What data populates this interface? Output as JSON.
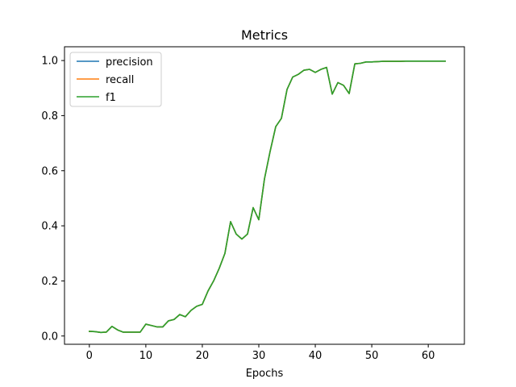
{
  "chart_data": {
    "type": "line",
    "title": "Metrics",
    "xlabel": "Epochs",
    "ylabel": "",
    "xlim": [
      -4.4,
      66.4
    ],
    "ylim": [
      -0.03,
      1.05
    ],
    "xticks": [
      0,
      10,
      20,
      30,
      40,
      50,
      60
    ],
    "yticks": [
      0.0,
      0.2,
      0.4,
      0.6,
      0.8,
      1.0
    ],
    "xtick_labels": [
      "0",
      "10",
      "20",
      "30",
      "40",
      "50",
      "60"
    ],
    "ytick_labels": [
      "0.0",
      "0.2",
      "0.4",
      "0.6",
      "0.8",
      "1.0"
    ],
    "grid": false,
    "legend_position": "top-left",
    "x": [
      0,
      1,
      2,
      3,
      4,
      5,
      6,
      7,
      8,
      9,
      10,
      11,
      12,
      13,
      14,
      15,
      16,
      17,
      18,
      19,
      20,
      21,
      22,
      23,
      24,
      25,
      26,
      27,
      28,
      29,
      30,
      31,
      32,
      33,
      34,
      35,
      36,
      37,
      38,
      39,
      40,
      41,
      42,
      43,
      44,
      45,
      46,
      47,
      48,
      49,
      50,
      51,
      52,
      53,
      54,
      55,
      56,
      57,
      58,
      59,
      60,
      61,
      62,
      63
    ],
    "series": [
      {
        "name": "precision",
        "color": "#1f77b4",
        "values": [
          0.017,
          0.016,
          0.013,
          0.014,
          0.035,
          0.022,
          0.014,
          0.014,
          0.014,
          0.014,
          0.043,
          0.038,
          0.033,
          0.033,
          0.055,
          0.06,
          0.078,
          0.07,
          0.093,
          0.108,
          0.115,
          0.163,
          0.2,
          0.246,
          0.3,
          0.415,
          0.37,
          0.352,
          0.37,
          0.466,
          0.422,
          0.57,
          0.67,
          0.76,
          0.79,
          0.895,
          0.94,
          0.95,
          0.965,
          0.968,
          0.957,
          0.968,
          0.975,
          0.878,
          0.92,
          0.91,
          0.88,
          0.988,
          0.99,
          0.995,
          0.995,
          0.996,
          0.997,
          0.997,
          0.997,
          0.997,
          0.998,
          0.998,
          0.998,
          0.998,
          0.998,
          0.998,
          0.998,
          0.998
        ]
      },
      {
        "name": "recall",
        "color": "#ff7f0e",
        "values": [
          0.017,
          0.016,
          0.013,
          0.014,
          0.035,
          0.022,
          0.014,
          0.014,
          0.014,
          0.014,
          0.043,
          0.038,
          0.033,
          0.033,
          0.055,
          0.06,
          0.078,
          0.07,
          0.093,
          0.108,
          0.115,
          0.163,
          0.2,
          0.246,
          0.3,
          0.415,
          0.37,
          0.352,
          0.37,
          0.466,
          0.422,
          0.57,
          0.67,
          0.76,
          0.79,
          0.895,
          0.94,
          0.95,
          0.965,
          0.968,
          0.957,
          0.968,
          0.975,
          0.878,
          0.92,
          0.91,
          0.88,
          0.988,
          0.99,
          0.995,
          0.995,
          0.996,
          0.997,
          0.997,
          0.997,
          0.997,
          0.998,
          0.998,
          0.998,
          0.998,
          0.998,
          0.998,
          0.998,
          0.998
        ]
      },
      {
        "name": "f1",
        "color": "#2ca02c",
        "values": [
          0.017,
          0.016,
          0.013,
          0.014,
          0.035,
          0.022,
          0.014,
          0.014,
          0.014,
          0.014,
          0.043,
          0.038,
          0.033,
          0.033,
          0.055,
          0.06,
          0.078,
          0.07,
          0.093,
          0.108,
          0.115,
          0.163,
          0.2,
          0.246,
          0.3,
          0.415,
          0.37,
          0.352,
          0.37,
          0.466,
          0.422,
          0.57,
          0.67,
          0.76,
          0.79,
          0.895,
          0.94,
          0.95,
          0.965,
          0.968,
          0.957,
          0.968,
          0.975,
          0.878,
          0.92,
          0.91,
          0.88,
          0.988,
          0.99,
          0.995,
          0.995,
          0.996,
          0.997,
          0.997,
          0.997,
          0.997,
          0.998,
          0.998,
          0.998,
          0.998,
          0.998,
          0.998,
          0.998,
          0.998
        ]
      }
    ]
  }
}
